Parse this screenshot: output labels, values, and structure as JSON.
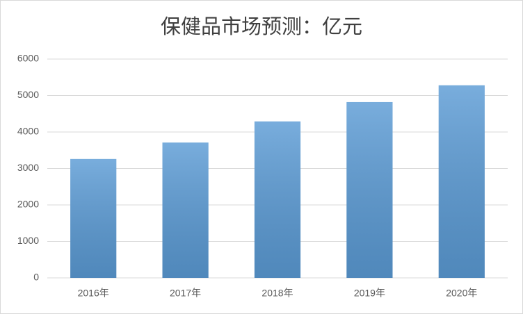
{
  "chart_data": {
    "type": "bar",
    "title": "保健品市场预测：亿元",
    "categories": [
      "2016年",
      "2017年",
      "2018年",
      "2019年",
      "2020年"
    ],
    "values": [
      3260,
      3710,
      4290,
      4820,
      5280
    ],
    "color": "#5b9bd5",
    "ylim": [
      0,
      6000
    ],
    "yticks": [
      0,
      1000,
      2000,
      3000,
      4000,
      5000,
      6000
    ],
    "grid": true
  }
}
